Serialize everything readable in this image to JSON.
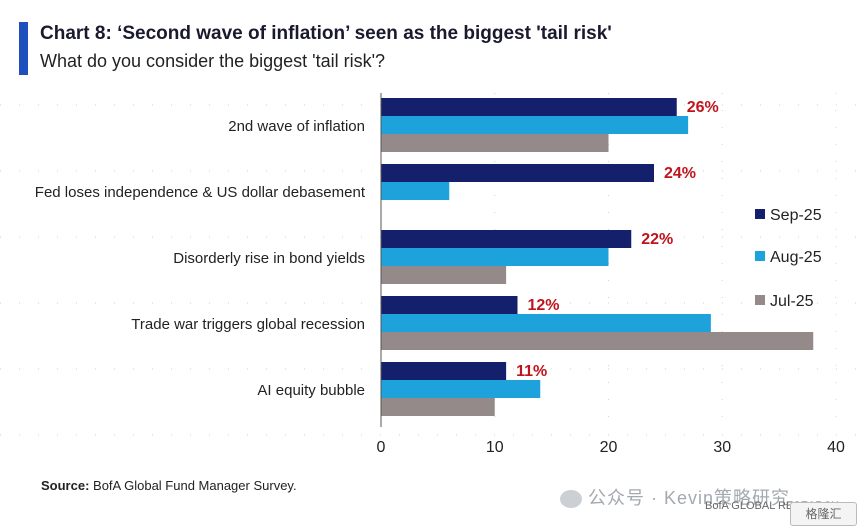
{
  "header": {
    "title": "Chart 8: ‘Second wave of inflation’ seen as the biggest 'tail risk'",
    "subtitle": "What do you consider the biggest 'tail risk'?",
    "accent_color": "#1f4fbf"
  },
  "footer": {
    "source_label": "Source:",
    "source_text": "BofA Global Fund Manager Survey.",
    "watermark": "公众号 · Kevin策略研究",
    "brand_text": "BofA GLOBAL RESEARCH",
    "badge_text": "格隆汇"
  },
  "chart_data": {
    "type": "bar",
    "orientation": "horizontal",
    "categories": [
      "2nd wave of inflation",
      "Fed loses independence & US dollar debasement",
      "Disorderly rise in bond yields",
      "Trade war triggers global recession",
      "AI equity bubble"
    ],
    "series": [
      {
        "name": "Sep-25",
        "color": "#14206b",
        "values": [
          26,
          24,
          22,
          12,
          11
        ]
      },
      {
        "name": "Aug-25",
        "color": "#1ea2dc",
        "values": [
          27,
          6,
          20,
          29,
          14
        ]
      },
      {
        "name": "Jul-25",
        "color": "#958a8a",
        "values": [
          20,
          null,
          11,
          38,
          10
        ]
      }
    ],
    "data_labels": [
      "26%",
      "24%",
      "22%",
      "12%",
      "11%"
    ],
    "data_label_color": "#c0141c",
    "xlim": [
      0,
      40
    ],
    "xticks": [
      0,
      10,
      20,
      30,
      40
    ],
    "grid": true,
    "legend_position": "right"
  }
}
